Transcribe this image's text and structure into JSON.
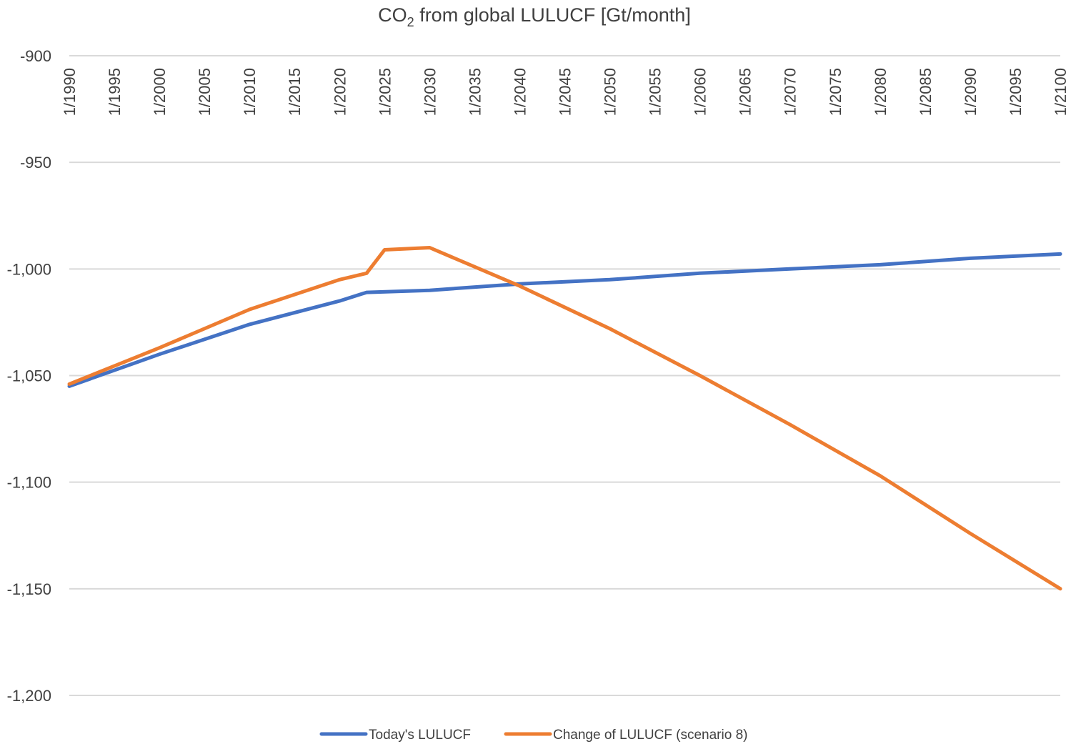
{
  "chart_data": {
    "type": "line",
    "title": {
      "main": "CO",
      "subscript": "2",
      "rest": " from global LULUCF [Gt/month]"
    },
    "xlabel": "",
    "ylabel": "",
    "ylim": [
      -1200,
      -900
    ],
    "yticks": [
      -900,
      -950,
      -1000,
      -1050,
      -1100,
      -1150,
      -1200
    ],
    "ytick_labels": [
      "-900",
      "-950",
      "-1,000",
      "-1,050",
      "-1,100",
      "-1,150",
      "-1,200"
    ],
    "xlim": [
      1990,
      2100
    ],
    "xticks": [
      1990,
      1995,
      2000,
      2005,
      2010,
      2015,
      2020,
      2025,
      2030,
      2035,
      2040,
      2045,
      2050,
      2055,
      2060,
      2065,
      2070,
      2075,
      2080,
      2085,
      2090,
      2095,
      2100
    ],
    "xtick_labels": [
      "1/1990",
      "1/1995",
      "1/2000",
      "1/2005",
      "1/2010",
      "1/2015",
      "1/2020",
      "1/2025",
      "1/2030",
      "1/2035",
      "1/2040",
      "1/2045",
      "1/2050",
      "1/2055",
      "1/2060",
      "1/2065",
      "1/2070",
      "1/2075",
      "1/2080",
      "1/2085",
      "1/2090",
      "1/2095",
      "1/2100"
    ],
    "x_axis_position": "top",
    "grid": true,
    "legend_position": "bottom",
    "series": [
      {
        "name": "Today's LULUCF",
        "color": "#4472C4",
        "x": [
          1990,
          2000,
          2010,
          2020,
          2023,
          2030,
          2040,
          2050,
          2060,
          2070,
          2080,
          2090,
          2100
        ],
        "values": [
          -1055,
          -1040,
          -1026,
          -1015,
          -1011,
          -1010,
          -1007,
          -1005,
          -1002,
          -1000,
          -998,
          -995,
          -993
        ]
      },
      {
        "name": "Change of LULUCF (scenario 8)",
        "color": "#ED7D31",
        "x": [
          1990,
          2000,
          2010,
          2020,
          2023,
          2025,
          2030,
          2040,
          2050,
          2060,
          2070,
          2080,
          2090,
          2100
        ],
        "values": [
          -1054,
          -1037,
          -1019,
          -1005,
          -1002,
          -991,
          -990,
          -1008,
          -1028,
          -1050,
          -1073,
          -1097,
          -1124,
          -1150
        ]
      }
    ]
  }
}
